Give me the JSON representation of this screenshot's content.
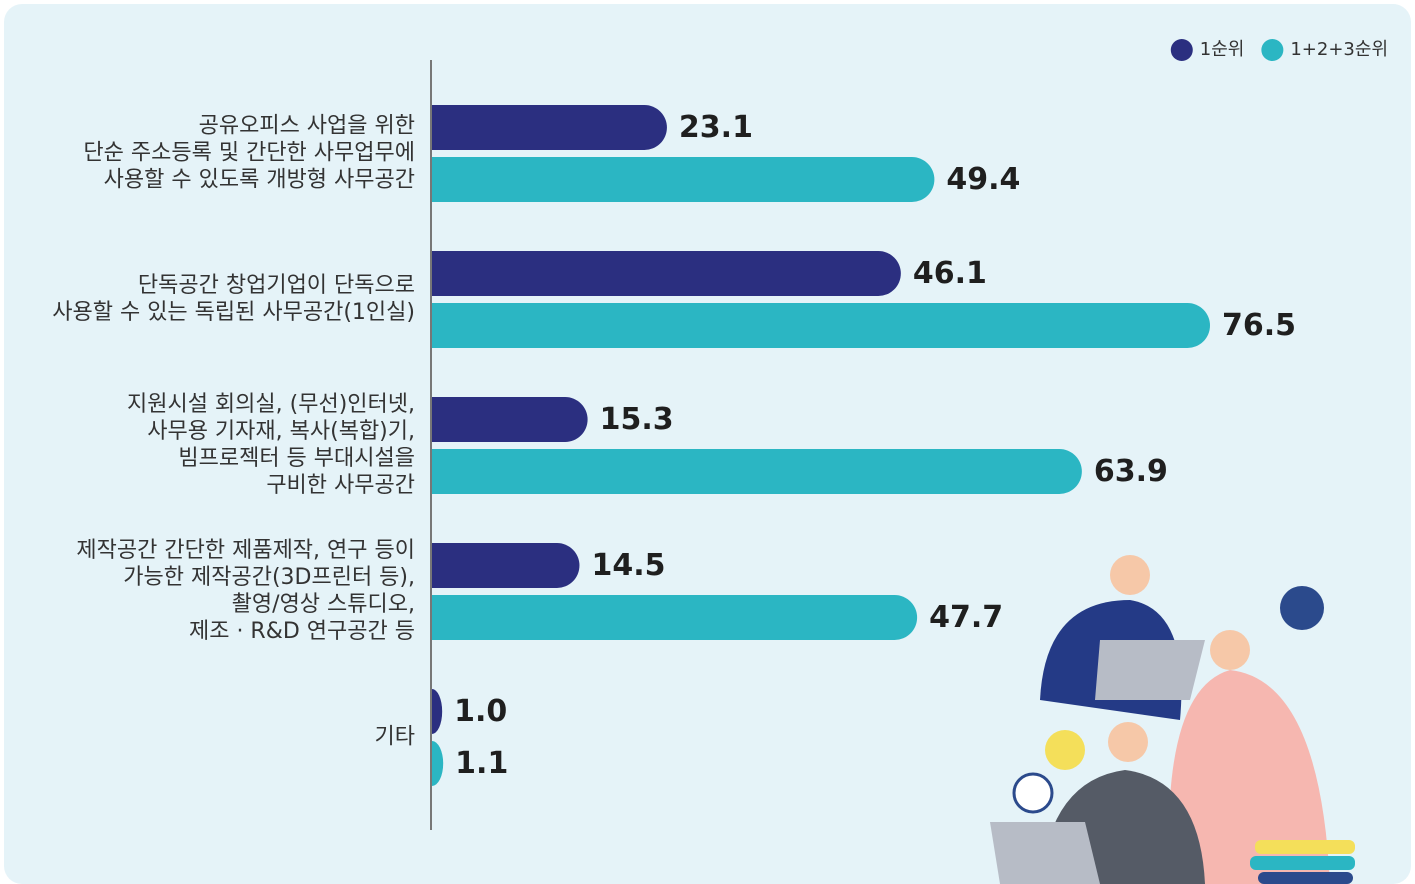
{
  "chart_data": {
    "type": "bar",
    "orientation": "horizontal",
    "categories": [
      "공유오피스 사업을 위한\n단순 주소등록 및 간단한 사무업무에\n사용할 수 있도록 개방형 사무공간",
      "단독공간 창업기업이 단독으로\n사용할 수 있는 독립된 사무공간(1인실)",
      "지원시설 회의실, (무선)인터넷,\n사무용 기자재, 복사(복합)기,\n빔프로젝터 등 부대시설을\n구비한 사무공간",
      "제작공간 간단한 제품제작, 연구 등이\n가능한 제작공간(3D프린터 등),\n촬영/영상 스튜디오,\n제조 · R&D 연구공간 등",
      "기타"
    ],
    "series": [
      {
        "name": "1순위",
        "color": "#2b2f80",
        "values": [
          23.1,
          46.1,
          15.3,
          14.5,
          1.0
        ],
        "value_labels": [
          "23.1",
          "46.1",
          "15.3",
          "14.5",
          "1.0"
        ]
      },
      {
        "name": "1+2+3순위",
        "color": "#2bb6c3",
        "values": [
          49.4,
          76.5,
          63.9,
          47.7,
          1.1
        ],
        "value_labels": [
          "49.4",
          "76.5",
          "63.9",
          "47.7",
          "1.1"
        ]
      }
    ],
    "legend": "top-right"
  }
}
